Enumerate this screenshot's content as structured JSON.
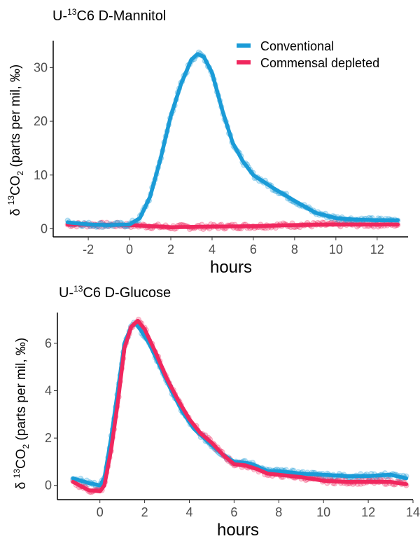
{
  "colors": {
    "Conventional": "#1a9bd7",
    "Commensal depleted": "#f0275e"
  },
  "legend": {
    "placement": "top-right",
    "items": [
      "Conventional",
      "Commensal depleted"
    ]
  },
  "chart_data": [
    {
      "type": "line",
      "title": {
        "prefix": "U-",
        "sup": "13",
        "rest": "C6 D-Mannitol"
      },
      "xlabel": "hours",
      "ylabel": {
        "prefix": "δ ",
        "sup": "13",
        "main": "CO",
        "sub": "2",
        "rest": " (parts per mil, ‰)"
      },
      "xlim": [
        -3.7,
        13.5
      ],
      "ylim": [
        -1.5,
        35
      ],
      "xticks": [
        "-2",
        "0",
        "2",
        "4",
        "6",
        "8",
        "10",
        "12"
      ],
      "yticks": [
        "0",
        "10",
        "20",
        "30"
      ],
      "grid": false,
      "legend_shown": true,
      "series": [
        {
          "name": "Conventional",
          "x": [
            -3,
            -2,
            -1,
            0,
            0.5,
            1,
            1.5,
            2,
            2.5,
            3,
            3.3,
            3.6,
            4,
            4.5,
            5,
            5.5,
            6,
            7,
            8,
            9,
            10,
            11,
            12,
            13
          ],
          "y": [
            1.2,
            0.8,
            0.7,
            0.8,
            2,
            6,
            13,
            21,
            27,
            31.5,
            32.5,
            32,
            29,
            22,
            16,
            12.5,
            10,
            7.5,
            5.2,
            3,
            2,
            1.7,
            1.6,
            1.6
          ]
        },
        {
          "name": "Commensal depleted",
          "x": [
            -3,
            0,
            2,
            4,
            6,
            8,
            10,
            13
          ],
          "y": [
            0.8,
            0.7,
            0.3,
            0.4,
            0.5,
            0.7,
            0.8,
            0.8
          ]
        }
      ]
    },
    {
      "type": "line",
      "title": {
        "prefix": "U-",
        "sup": "13",
        "rest": "C6 D-Glucose"
      },
      "xlabel": "hours",
      "ylabel": {
        "prefix": "δ ",
        "sup": "13",
        "main": "CO",
        "sub": "2",
        "rest": " (parts per mil, ‰)"
      },
      "xlim": [
        -1.9,
        14.0
      ],
      "ylim": [
        -0.6,
        7.3
      ],
      "xticks": [
        "0",
        "2",
        "4",
        "6",
        "8",
        "10",
        "12",
        "14"
      ],
      "yticks": [
        "0",
        "2",
        "4",
        "6"
      ],
      "grid": false,
      "legend_shown": false,
      "series": [
        {
          "name": "Conventional",
          "x": [
            -1.2,
            -0.5,
            0,
            0.2,
            0.5,
            0.8,
            1.1,
            1.4,
            1.6,
            1.8,
            2.2,
            2.7,
            3.2,
            3.7,
            4.2,
            5,
            5.5,
            6,
            6.5,
            6.8,
            7.5,
            8,
            9,
            10,
            11,
            12,
            13,
            13.7
          ],
          "y": [
            0.3,
            0.1,
            0,
            0.3,
            2,
            4,
            6,
            6.7,
            6.85,
            6.6,
            6,
            5,
            4,
            3.1,
            2.4,
            1.7,
            1.3,
            1.0,
            0.95,
            0.9,
            0.6,
            0.6,
            0.5,
            0.45,
            0.4,
            0.4,
            0.45,
            0.3
          ]
        },
        {
          "name": "Commensal depleted",
          "x": [
            -1.2,
            -0.5,
            0,
            0.2,
            0.5,
            0.8,
            1.1,
            1.4,
            1.7,
            2,
            2.5,
            3,
            3.5,
            4,
            4.5,
            5,
            5.5,
            6,
            6.5,
            7,
            7.5,
            8,
            9,
            10,
            11,
            12,
            13,
            13.7
          ],
          "y": [
            0.15,
            -0.2,
            -0.25,
            0,
            1.5,
            3.5,
            5.8,
            6.7,
            6.95,
            6.6,
            5.6,
            4.5,
            3.6,
            2.8,
            2.2,
            1.8,
            1.3,
            0.9,
            0.85,
            0.7,
            0.5,
            0.45,
            0.35,
            0.2,
            0.15,
            0.15,
            0.15,
            0.05
          ]
        }
      ]
    }
  ]
}
